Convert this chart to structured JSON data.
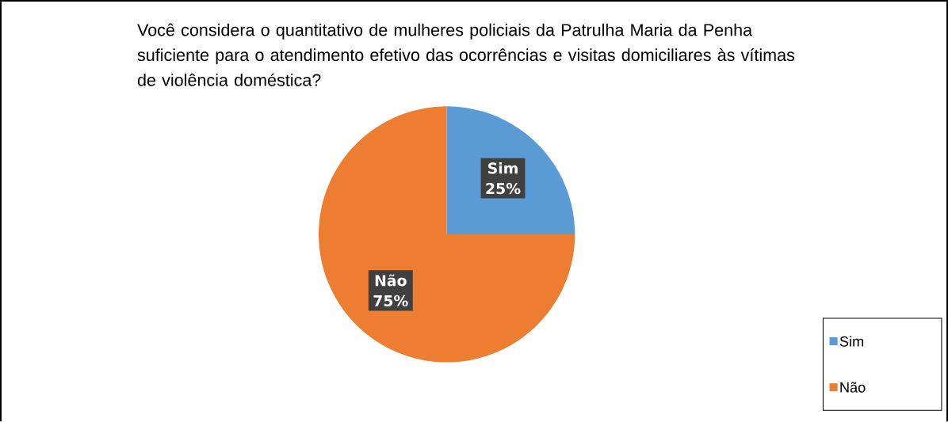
{
  "chart_data": {
    "type": "pie",
    "title": "Você considera o quantitativo de mulheres policiais da Patrulha Maria da Penha suficiente para o atendimento efetivo das ocorrências e visitas domiciliares às vítimas de violência doméstica?",
    "categories": [
      "Sim",
      "Não"
    ],
    "values": [
      25,
      75
    ],
    "colors": [
      "#5b9bd5",
      "#ed7d31"
    ],
    "value_labels": [
      "25%",
      "75%"
    ],
    "legend": "bottom right"
  }
}
